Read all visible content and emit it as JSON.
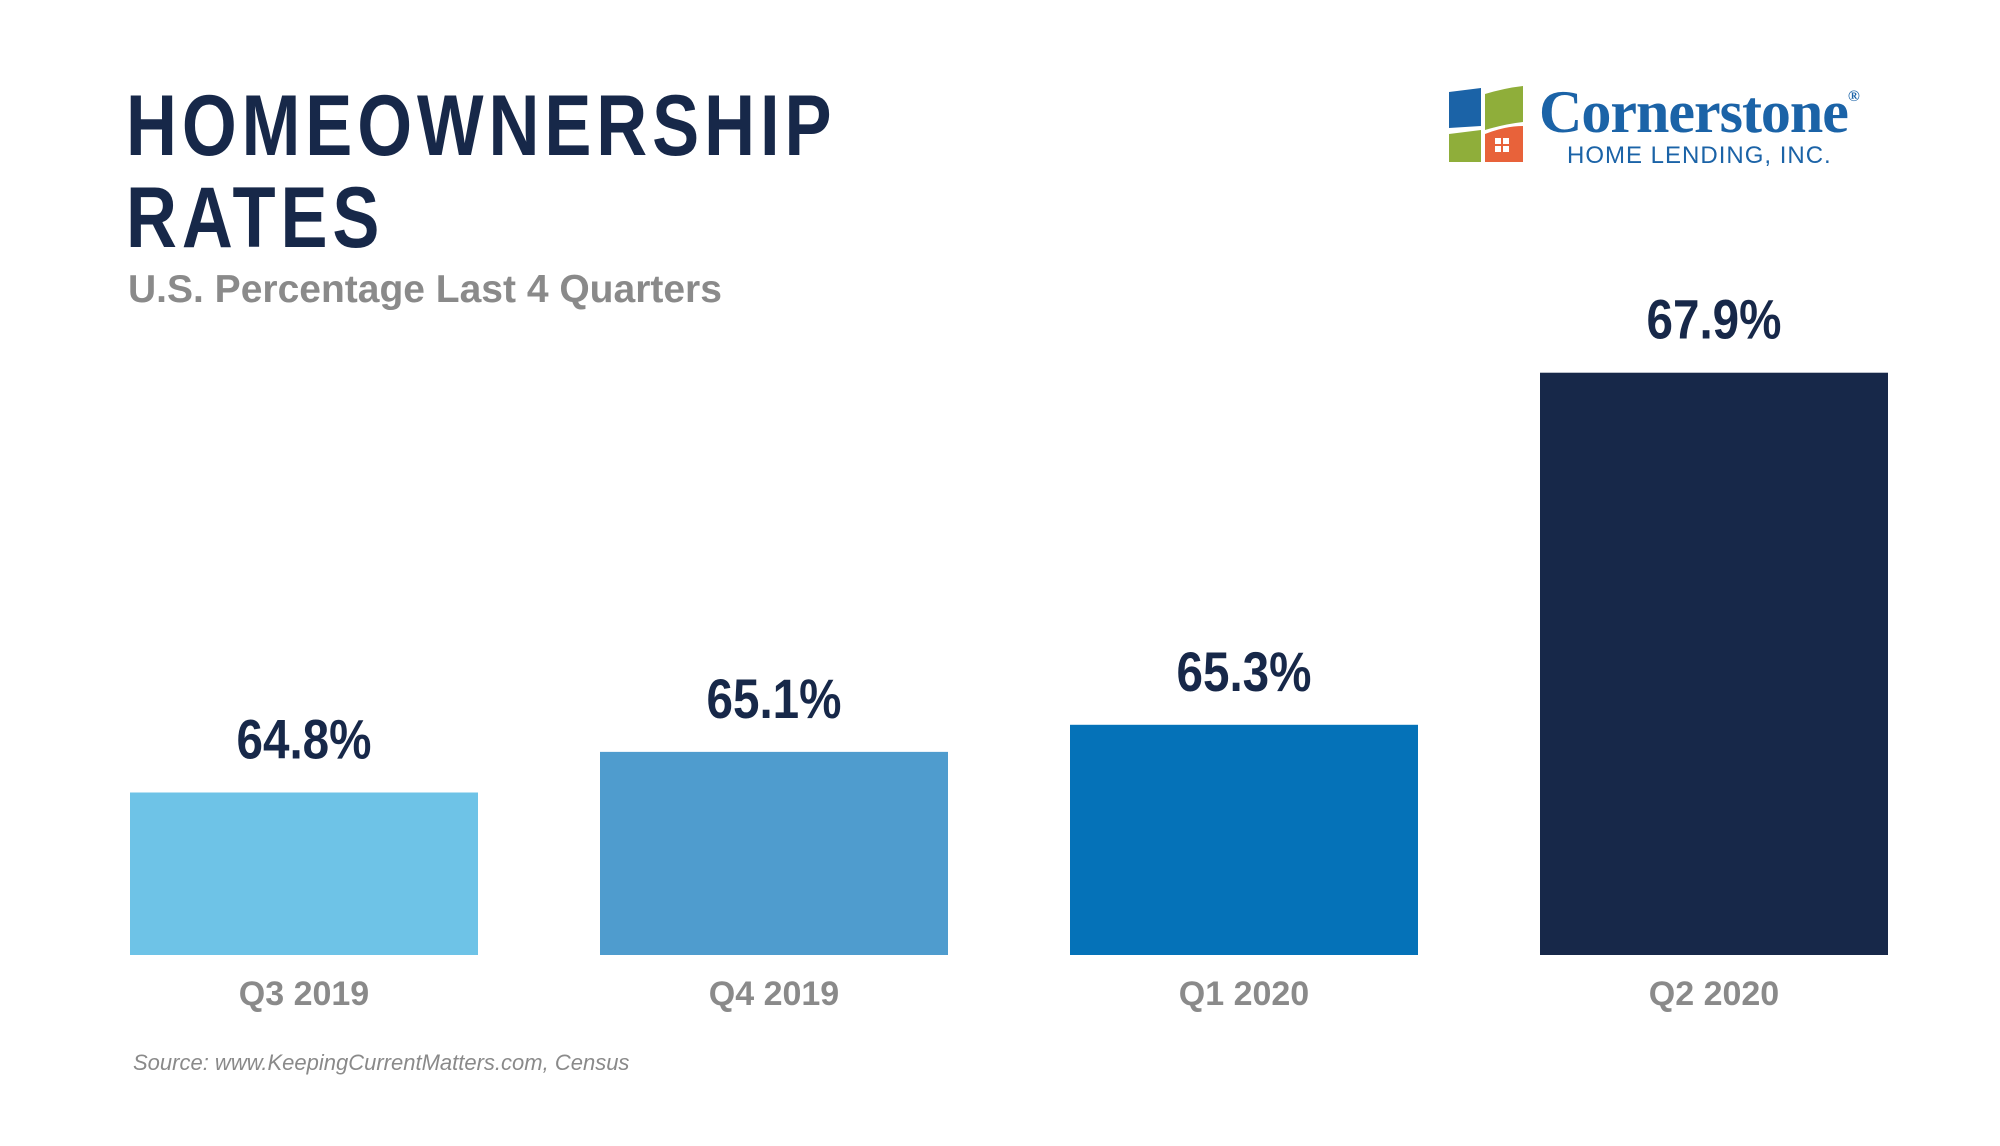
{
  "header": {
    "title_line1": "HOMEOWNERSHIP",
    "title_line2": "RATES",
    "subtitle": "U.S. Percentage Last 4 Quarters"
  },
  "logo": {
    "name": "Cornerstone",
    "registered_mark": "®",
    "subtitle": "HOME LENDING, INC."
  },
  "footer": {
    "source": "Source: www.KeepingCurrentMatters.com, Census"
  },
  "colors": {
    "title": "#172849",
    "subtitle": "#8a8a8a",
    "logo_blue": "#1b63a7",
    "logo_green": "#8fae3a",
    "logo_orange": "#e8623a"
  },
  "chart_data": {
    "type": "bar",
    "title": "HOMEOWNERSHIP RATES",
    "subtitle": "U.S. Percentage Last 4 Quarters",
    "categories": [
      "Q3 2019",
      "Q4 2019",
      "Q1 2020",
      "Q2 2020"
    ],
    "values": [
      64.8,
      65.1,
      65.3,
      67.9
    ],
    "value_labels": [
      "64.8%",
      "65.1%",
      "65.3%",
      "67.9%"
    ],
    "unit": "%",
    "bar_colors": [
      "#6ec3e7",
      "#4f9cce",
      "#0572b8",
      "#172849"
    ],
    "ylim": [
      63.6,
      68.4
    ],
    "grid": false,
    "legend": "none"
  }
}
